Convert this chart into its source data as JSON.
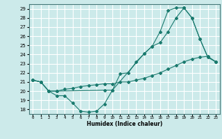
{
  "xlabel": "Humidex (Indice chaleur)",
  "bg_color": "#cceaea",
  "grid_color": "#ffffff",
  "line_color": "#1a7a6e",
  "xlim": [
    -0.5,
    23.5
  ],
  "ylim": [
    17.5,
    29.5
  ],
  "xticks": [
    0,
    1,
    2,
    3,
    4,
    5,
    6,
    7,
    8,
    9,
    10,
    11,
    12,
    13,
    14,
    15,
    16,
    17,
    18,
    19,
    20,
    21,
    22,
    23
  ],
  "yticks": [
    18,
    19,
    20,
    21,
    22,
    23,
    24,
    25,
    26,
    27,
    28,
    29
  ],
  "line1_x": [
    0,
    1,
    2,
    3,
    4,
    5,
    6,
    7,
    8,
    9,
    10,
    11,
    12,
    13,
    14,
    15,
    16,
    17,
    18,
    19,
    20,
    21,
    22,
    23
  ],
  "line1_y": [
    21.2,
    21.0,
    20.0,
    19.5,
    19.5,
    18.7,
    17.8,
    17.7,
    17.8,
    18.6,
    20.1,
    21.9,
    22.0,
    23.2,
    24.1,
    24.9,
    25.3,
    26.5,
    28.0,
    29.1,
    28.0,
    25.7,
    23.7,
    23.2
  ],
  "line2_x": [
    0,
    1,
    2,
    3,
    4,
    5,
    6,
    7,
    8,
    9,
    10,
    11,
    12,
    13,
    14,
    15,
    16,
    17,
    18,
    19,
    20,
    21,
    22,
    23
  ],
  "line2_y": [
    21.2,
    21.0,
    20.0,
    20.0,
    20.2,
    20.3,
    20.5,
    20.6,
    20.7,
    20.8,
    20.8,
    21.0,
    21.0,
    21.2,
    21.4,
    21.7,
    22.0,
    22.4,
    22.8,
    23.2,
    23.5,
    23.7,
    23.8,
    23.2
  ],
  "line3_x": [
    0,
    1,
    2,
    3,
    9,
    10,
    14,
    15,
    16,
    17,
    18,
    19,
    20,
    21,
    22,
    23
  ],
  "line3_y": [
    21.2,
    21.0,
    20.0,
    20.0,
    20.1,
    20.1,
    24.1,
    24.9,
    26.5,
    28.8,
    29.1,
    29.1,
    28.0,
    25.7,
    23.7,
    23.2
  ]
}
